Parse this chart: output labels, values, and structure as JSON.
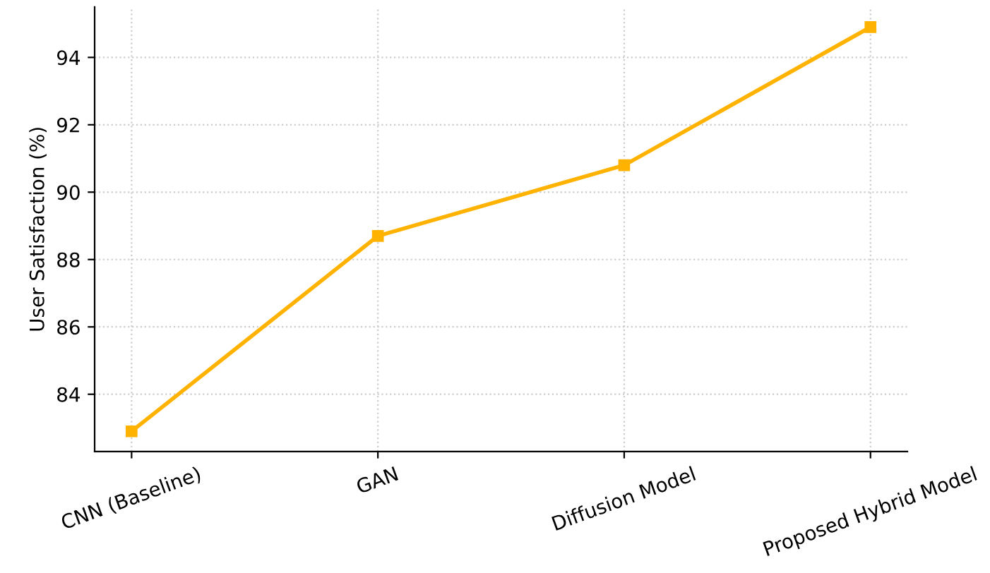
{
  "chart_data": {
    "type": "line",
    "ylabel": "User Satisfaction (%)",
    "categories": [
      "CNN (Baseline)",
      "GAN",
      "Diffusion Model",
      "Proposed Hybrid Model"
    ],
    "series": [
      {
        "color": "#ffb300",
        "values": [
          82.9,
          88.7,
          90.8,
          94.9
        ]
      }
    ],
    "ylim": [
      82.3,
      95.5
    ],
    "yticks": [
      84,
      86,
      88,
      90,
      92,
      94
    ],
    "grid": true,
    "marker": "square",
    "line_style": "solid"
  }
}
